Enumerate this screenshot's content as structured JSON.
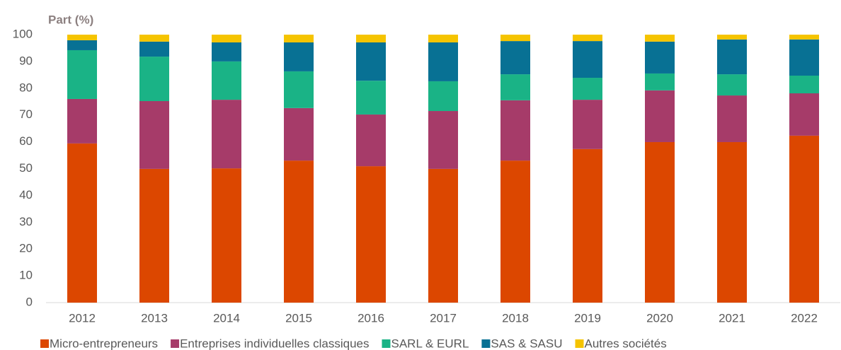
{
  "chart_data": {
    "type": "stacked_bar",
    "y_label": "Part (%)",
    "categories": [
      "2012",
      "2013",
      "2014",
      "2015",
      "2016",
      "2017",
      "2018",
      "2019",
      "2020",
      "2021",
      "2022"
    ],
    "series": [
      {
        "name": "Micro-entrepreneurs",
        "color": "#dc4700",
        "values": [
          59.4,
          49.9,
          50.1,
          53.0,
          50.9,
          49.9,
          53.0,
          57.3,
          59.9,
          59.9,
          62.3
        ]
      },
      {
        "name": "Entreprises individuelles classiques",
        "color": "#a63b69",
        "values": [
          16.6,
          25.3,
          25.6,
          19.6,
          19.3,
          21.6,
          22.5,
          18.4,
          19.3,
          17.4,
          15.8
        ]
      },
      {
        "name": "SARL & EURL",
        "color": "#1ab386",
        "values": [
          18.2,
          16.6,
          14.3,
          13.7,
          12.6,
          11.1,
          9.7,
          8.2,
          6.3,
          7.9,
          6.6
        ]
      },
      {
        "name": "SAS & SASU",
        "color": "#087194",
        "values": [
          3.7,
          5.6,
          7.1,
          10.8,
          14.3,
          14.5,
          12.4,
          13.7,
          11.9,
          13.0,
          13.5
        ]
      },
      {
        "name": "Autres sociétés",
        "color": "#f5c400",
        "values": [
          2.1,
          2.6,
          2.9,
          2.9,
          2.9,
          2.9,
          2.4,
          2.4,
          2.6,
          1.8,
          1.8
        ]
      }
    ],
    "ylim": [
      0,
      100
    ],
    "yticks": [
      0,
      10,
      20,
      30,
      40,
      50,
      60,
      70,
      80,
      90,
      100
    ],
    "grid": false,
    "legend": "bottom"
  }
}
